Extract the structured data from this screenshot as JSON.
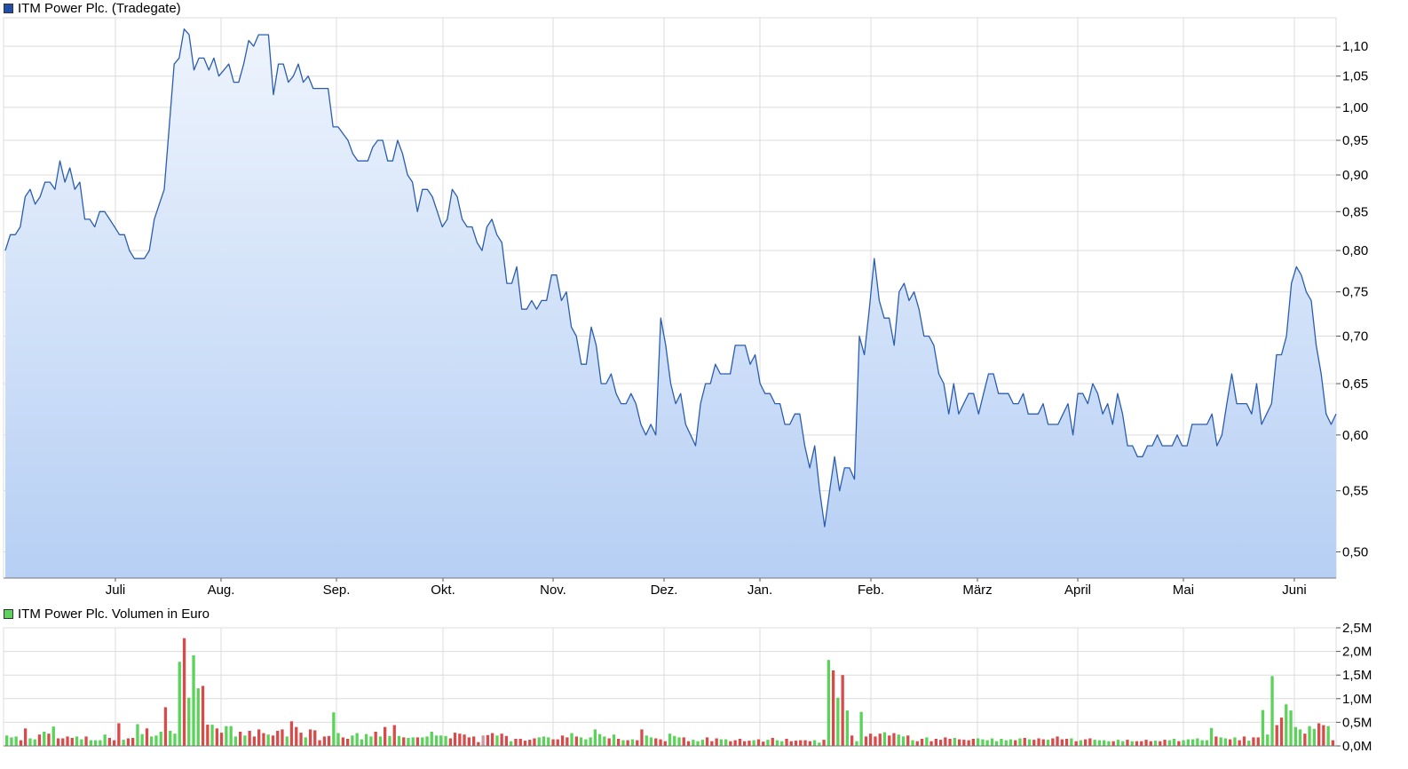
{
  "colors": {
    "price_line": "#2a5db0",
    "price_fill_top": "#eef4fd",
    "price_fill_bottom": "#b6cff4",
    "grid": "#dcdcdc",
    "volume_up": "#5bd35b",
    "volume_down": "#d84b4b",
    "volume_neutral": "#c79aa0",
    "legend_price": "#1f4fa8",
    "legend_volume": "#5bd35b"
  },
  "chart_data": [
    {
      "type": "area",
      "series": [
        {
          "name": "ITM Power Plc. (Tradegate)"
        }
      ],
      "title": "ITM Power Plc. (Tradegate)",
      "x_labels": [
        "Juli",
        "Aug.",
        "Sep.",
        "Okt.",
        "Nov.",
        "Dez.",
        "Jan.",
        "Feb.",
        "März",
        "April",
        "Mai",
        "Juni"
      ],
      "y_ticks": [
        "1,10",
        "1,05",
        "1,00",
        "0,95",
        "0,90",
        "0,85",
        "0,80",
        "0,75",
        "0,70",
        "0,65",
        "0,60",
        "0,55",
        "0,50"
      ],
      "y_tick_values": [
        1.1,
        1.05,
        1.0,
        0.95,
        0.9,
        0.85,
        0.8,
        0.75,
        0.7,
        0.65,
        0.6,
        0.55,
        0.5
      ],
      "ylim": [
        0.48,
        1.15
      ],
      "y_scale": "log",
      "grid": true,
      "legend_position": "top-left",
      "values": [
        0.8,
        0.82,
        0.82,
        0.83,
        0.87,
        0.88,
        0.86,
        0.87,
        0.89,
        0.89,
        0.88,
        0.92,
        0.89,
        0.91,
        0.88,
        0.89,
        0.84,
        0.84,
        0.83,
        0.85,
        0.85,
        0.84,
        0.83,
        0.82,
        0.82,
        0.8,
        0.79,
        0.79,
        0.79,
        0.8,
        0.84,
        0.86,
        0.88,
        0.97,
        1.07,
        1.08,
        1.13,
        1.12,
        1.06,
        1.08,
        1.08,
        1.06,
        1.08,
        1.05,
        1.06,
        1.07,
        1.04,
        1.04,
        1.07,
        1.11,
        1.1,
        1.12,
        1.12,
        1.12,
        1.02,
        1.07,
        1.07,
        1.04,
        1.05,
        1.07,
        1.04,
        1.05,
        1.03,
        1.03,
        1.03,
        1.03,
        0.97,
        0.97,
        0.96,
        0.95,
        0.93,
        0.92,
        0.92,
        0.92,
        0.94,
        0.95,
        0.95,
        0.92,
        0.92,
        0.95,
        0.93,
        0.9,
        0.89,
        0.85,
        0.88,
        0.88,
        0.87,
        0.85,
        0.83,
        0.84,
        0.88,
        0.87,
        0.84,
        0.83,
        0.83,
        0.81,
        0.8,
        0.83,
        0.84,
        0.82,
        0.81,
        0.76,
        0.76,
        0.78,
        0.73,
        0.73,
        0.74,
        0.73,
        0.74,
        0.74,
        0.77,
        0.77,
        0.74,
        0.75,
        0.71,
        0.7,
        0.67,
        0.67,
        0.71,
        0.69,
        0.65,
        0.65,
        0.66,
        0.64,
        0.63,
        0.63,
        0.64,
        0.63,
        0.61,
        0.6,
        0.61,
        0.6,
        0.72,
        0.69,
        0.65,
        0.63,
        0.64,
        0.61,
        0.6,
        0.59,
        0.63,
        0.65,
        0.65,
        0.67,
        0.66,
        0.66,
        0.66,
        0.69,
        0.69,
        0.69,
        0.67,
        0.68,
        0.65,
        0.64,
        0.64,
        0.63,
        0.63,
        0.61,
        0.61,
        0.62,
        0.62,
        0.59,
        0.57,
        0.59,
        0.55,
        0.52,
        0.55,
        0.58,
        0.55,
        0.57,
        0.57,
        0.56,
        0.7,
        0.68,
        0.73,
        0.79,
        0.74,
        0.72,
        0.72,
        0.69,
        0.75,
        0.76,
        0.74,
        0.75,
        0.73,
        0.7,
        0.7,
        0.69,
        0.66,
        0.65,
        0.62,
        0.65,
        0.62,
        0.63,
        0.64,
        0.64,
        0.62,
        0.64,
        0.66,
        0.66,
        0.64,
        0.64,
        0.64,
        0.63,
        0.63,
        0.64,
        0.62,
        0.62,
        0.62,
        0.63,
        0.61,
        0.61,
        0.61,
        0.62,
        0.63,
        0.6,
        0.64,
        0.64,
        0.63,
        0.65,
        0.64,
        0.62,
        0.63,
        0.61,
        0.64,
        0.62,
        0.59,
        0.59,
        0.58,
        0.58,
        0.59,
        0.59,
        0.6,
        0.59,
        0.59,
        0.59,
        0.6,
        0.59,
        0.59,
        0.61,
        0.61,
        0.61,
        0.61,
        0.62,
        0.59,
        0.6,
        0.63,
        0.66,
        0.63,
        0.63,
        0.63,
        0.62,
        0.65,
        0.61,
        0.62,
        0.63,
        0.68,
        0.68,
        0.7,
        0.76,
        0.78,
        0.77,
        0.75,
        0.74,
        0.69,
        0.66,
        0.62,
        0.61,
        0.62
      ]
    },
    {
      "type": "bar",
      "series": [
        {
          "name": "ITM Power Plc. Volumen in Euro"
        }
      ],
      "title": "ITM Power Plc. Volumen in Euro",
      "x_labels": [
        "Juli",
        "Aug.",
        "Sep.",
        "Okt.",
        "Nov.",
        "Dez.",
        "Jan.",
        "Feb.",
        "März",
        "April",
        "Mai",
        "Juni"
      ],
      "y_ticks": [
        "2,5M",
        "2,0M",
        "1,5M",
        "1,0M",
        "0,5M",
        "0,0M"
      ],
      "y_tick_values": [
        2.5,
        2.0,
        1.5,
        1.0,
        0.5,
        0.0
      ],
      "ylim": [
        0.0,
        2.5
      ],
      "unit": "M Euro",
      "grid": true,
      "legend_position": "top-left",
      "values": [
        0.22,
        0.18,
        0.2,
        0.12,
        0.37,
        0.16,
        0.14,
        0.24,
        0.3,
        0.26,
        0.41,
        0.16,
        0.16,
        0.2,
        0.17,
        0.2,
        0.14,
        0.2,
        0.12,
        0.12,
        0.12,
        0.24,
        0.17,
        0.12,
        0.48,
        0.13,
        0.16,
        0.17,
        0.46,
        0.25,
        0.37,
        0.2,
        0.22,
        0.3,
        0.82,
        0.32,
        0.26,
        1.78,
        2.28,
        1.02,
        1.92,
        1.22,
        1.27,
        0.45,
        0.45,
        0.37,
        0.28,
        0.42,
        0.42,
        0.2,
        0.3,
        0.22,
        0.32,
        0.2,
        0.35,
        0.27,
        0.24,
        0.22,
        0.32,
        0.35,
        0.2,
        0.52,
        0.4,
        0.28,
        0.18,
        0.35,
        0.33,
        0.12,
        0.2,
        0.21,
        0.71,
        0.27,
        0.18,
        0.15,
        0.22,
        0.27,
        0.14,
        0.25,
        0.2,
        0.3,
        0.2,
        0.4,
        0.21,
        0.44,
        0.21,
        0.18,
        0.17,
        0.18,
        0.18,
        0.18,
        0.2,
        0.3,
        0.22,
        0.22,
        0.21,
        0.16,
        0.28,
        0.26,
        0.24,
        0.18,
        0.2,
        0.08,
        0.22,
        0.23,
        0.27,
        0.22,
        0.26,
        0.21,
        0.1,
        0.15,
        0.15,
        0.11,
        0.13,
        0.16,
        0.18,
        0.2,
        0.18,
        0.14,
        0.14,
        0.22,
        0.18,
        0.27,
        0.2,
        0.18,
        0.14,
        0.18,
        0.35,
        0.25,
        0.2,
        0.16,
        0.24,
        0.15,
        0.12,
        0.12,
        0.14,
        0.12,
        0.35,
        0.22,
        0.18,
        0.16,
        0.14,
        0.1,
        0.26,
        0.21,
        0.18,
        0.18,
        0.1,
        0.13,
        0.1,
        0.13,
        0.18,
        0.1,
        0.16,
        0.14,
        0.14,
        0.1,
        0.12,
        0.15,
        0.1,
        0.11,
        0.12,
        0.14,
        0.09,
        0.13,
        0.17,
        0.12,
        0.1,
        0.15,
        0.1,
        0.11,
        0.12,
        0.12,
        0.1,
        0.12,
        0.07,
        0.13,
        1.82,
        1.6,
        1.02,
        1.5,
        0.75,
        0.22,
        0.1,
        0.72,
        0.2,
        0.26,
        0.2,
        0.26,
        0.29,
        0.22,
        0.27,
        0.24,
        0.2,
        0.22,
        0.12,
        0.1,
        0.15,
        0.18,
        0.1,
        0.15,
        0.13,
        0.18,
        0.15,
        0.17,
        0.14,
        0.13,
        0.12,
        0.15,
        0.16,
        0.14,
        0.12,
        0.16,
        0.1,
        0.15,
        0.12,
        0.14,
        0.12,
        0.16,
        0.17,
        0.14,
        0.13,
        0.16,
        0.14,
        0.13,
        0.16,
        0.2,
        0.14,
        0.15,
        0.16,
        0.1,
        0.12,
        0.14,
        0.16,
        0.13,
        0.12,
        0.12,
        0.1,
        0.1,
        0.13,
        0.1,
        0.13,
        0.1,
        0.1,
        0.1,
        0.13,
        0.1,
        0.11,
        0.1,
        0.13,
        0.12,
        0.15,
        0.1,
        0.12,
        0.14,
        0.14,
        0.16,
        0.12,
        0.12,
        0.38,
        0.2,
        0.18,
        0.16,
        0.14,
        0.18,
        0.12,
        0.2,
        0.11,
        0.18,
        0.18,
        0.76,
        0.24,
        1.48,
        0.44,
        0.6,
        0.88,
        0.75,
        0.4,
        0.35,
        0.26,
        0.42,
        0.36,
        0.48,
        0.44,
        0.42,
        0.12
      ],
      "colors_code": "gggrrggrgrgrrrrggrggggrrrgrrggrgggrgggrgggrrgrrgggrgrrrrgrrrgrrrgrrrrrggrrgggggrgrgrgrggrggggggrrrrrrrnrrgrrgrrrrrgggrrrrgrggggggrgrgrgrrggrrrgggrrgggrrrggrrrrrgrrgrggrrrrrrggrgrgrgrggrrrrgrrggrgrrgrrrrrgrrrrggggggggrgrgrrrgrrrrgrgrrggggrggrgrrrrgrrggrgggggggrggrgrrgrrgggrrggggrggrrgrrgrgrgrrggggrrrgrgrggrrggggrggrgrrgrgrggrgggrggggggrrrrrrg"
    }
  ]
}
